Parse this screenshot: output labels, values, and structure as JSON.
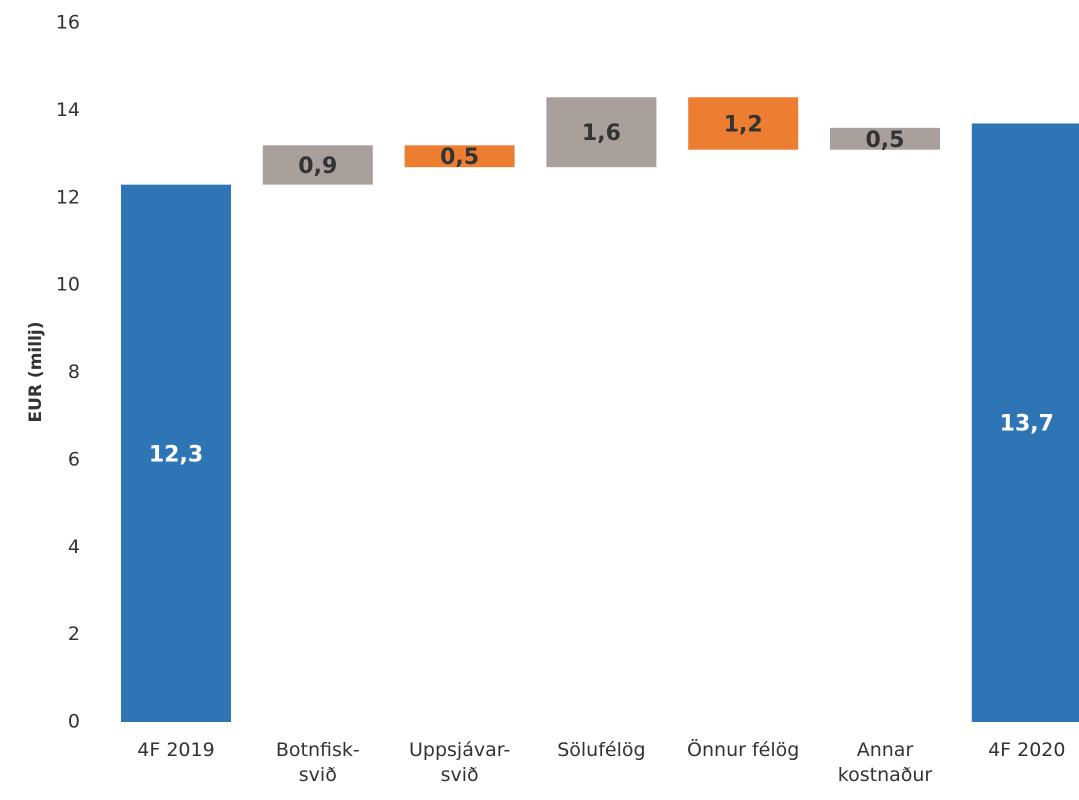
{
  "chart_data": {
    "type": "waterfall",
    "y_label": "EUR (millj)",
    "categories": [
      "4F 2019",
      "Botnfisk-\nsvið",
      "Uppsjávar-\nsvið",
      "Sölufélög",
      "Önnur félög",
      "Annar\nkostnaður",
      "4F 2020"
    ],
    "values": [
      12.3,
      0.9,
      0.5,
      1.6,
      1.2,
      0.5,
      13.7
    ],
    "value_labels": [
      "12,3",
      "0,9",
      "0,5",
      "1,6",
      "1,2",
      "0,5",
      "13,7"
    ],
    "measure": [
      "total",
      "increase",
      "decrease",
      "increase",
      "decrease",
      "increase",
      "total"
    ],
    "colors": [
      "#2e75b6",
      "#a9a09b",
      "#ed7d31",
      "#a9a09b",
      "#ed7d31",
      "#a9a09b",
      "#2e75b6"
    ],
    "ylim": [
      0,
      16
    ],
    "yticks": [
      0,
      2,
      4,
      6,
      8,
      10,
      12,
      14,
      16
    ],
    "grid": false
  }
}
